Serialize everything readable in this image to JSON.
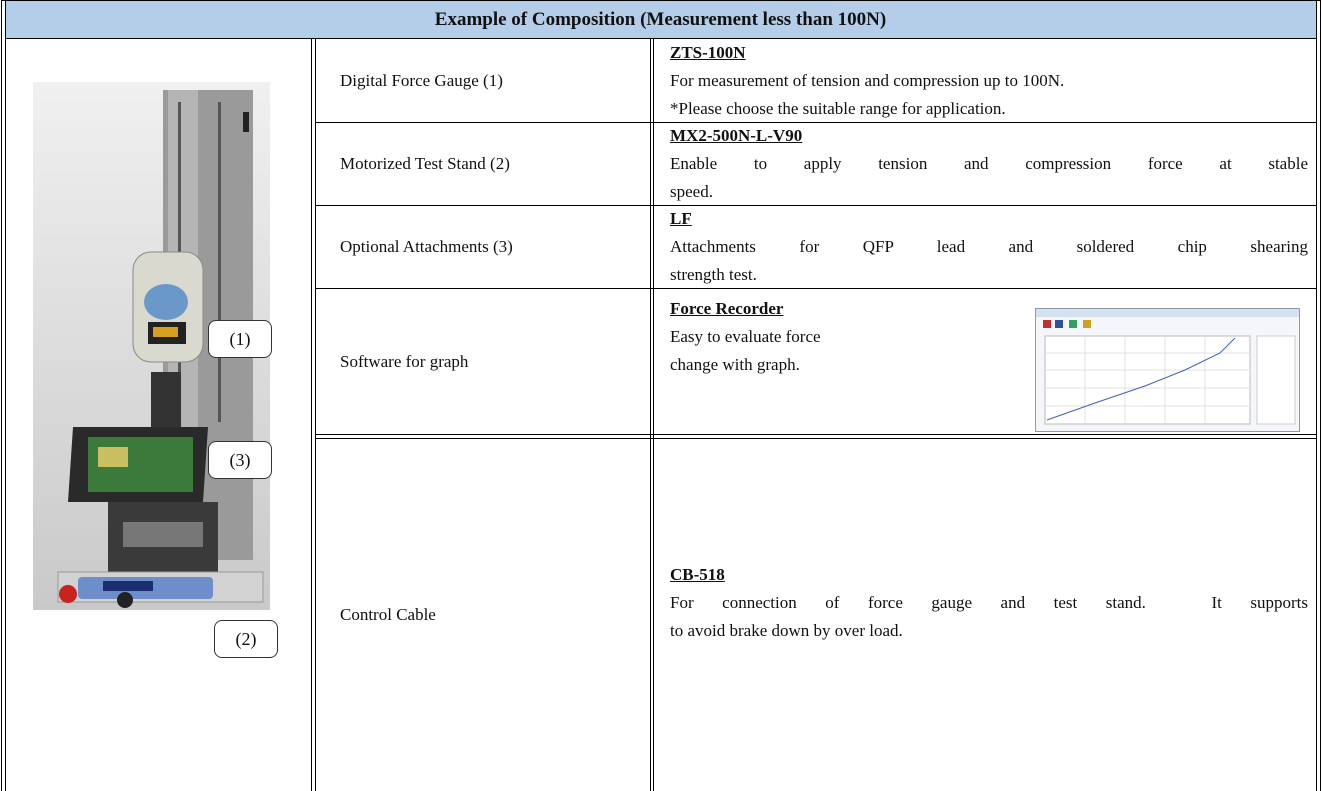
{
  "header": {
    "title": "Example of Composition (Measurement less than 100N)"
  },
  "image": {
    "callouts": [
      "(1)",
      "(3)",
      "(2)"
    ]
  },
  "table": {
    "rows": [
      {
        "label": "Digital Force Gauge (1)",
        "product": "ZTS-100N",
        "description": [
          "For measurement of tension and compression up to 100N.",
          "*Please choose the suitable range for application."
        ]
      },
      {
        "label": "Motorized Test Stand (2)",
        "product": "MX2-500N-L-V90",
        "description": [
          "Enable to apply tension and compression force at stable",
          "speed."
        ]
      },
      {
        "label": "Optional Attachments (3)",
        "product": "LF",
        "description": [
          "Attachments for QFP lead and soldered chip shearing",
          "strength test."
        ]
      },
      {
        "label": "Software for graph",
        "product": "Force Recorder",
        "description": [
          "Easy to evaluate force",
          "change with graph."
        ]
      },
      {
        "label": "Control Cable",
        "product": "CB-518",
        "description": [
          "For connection of force gauge and test stand.　It supports",
          "to avoid brake down by over load."
        ]
      }
    ]
  }
}
